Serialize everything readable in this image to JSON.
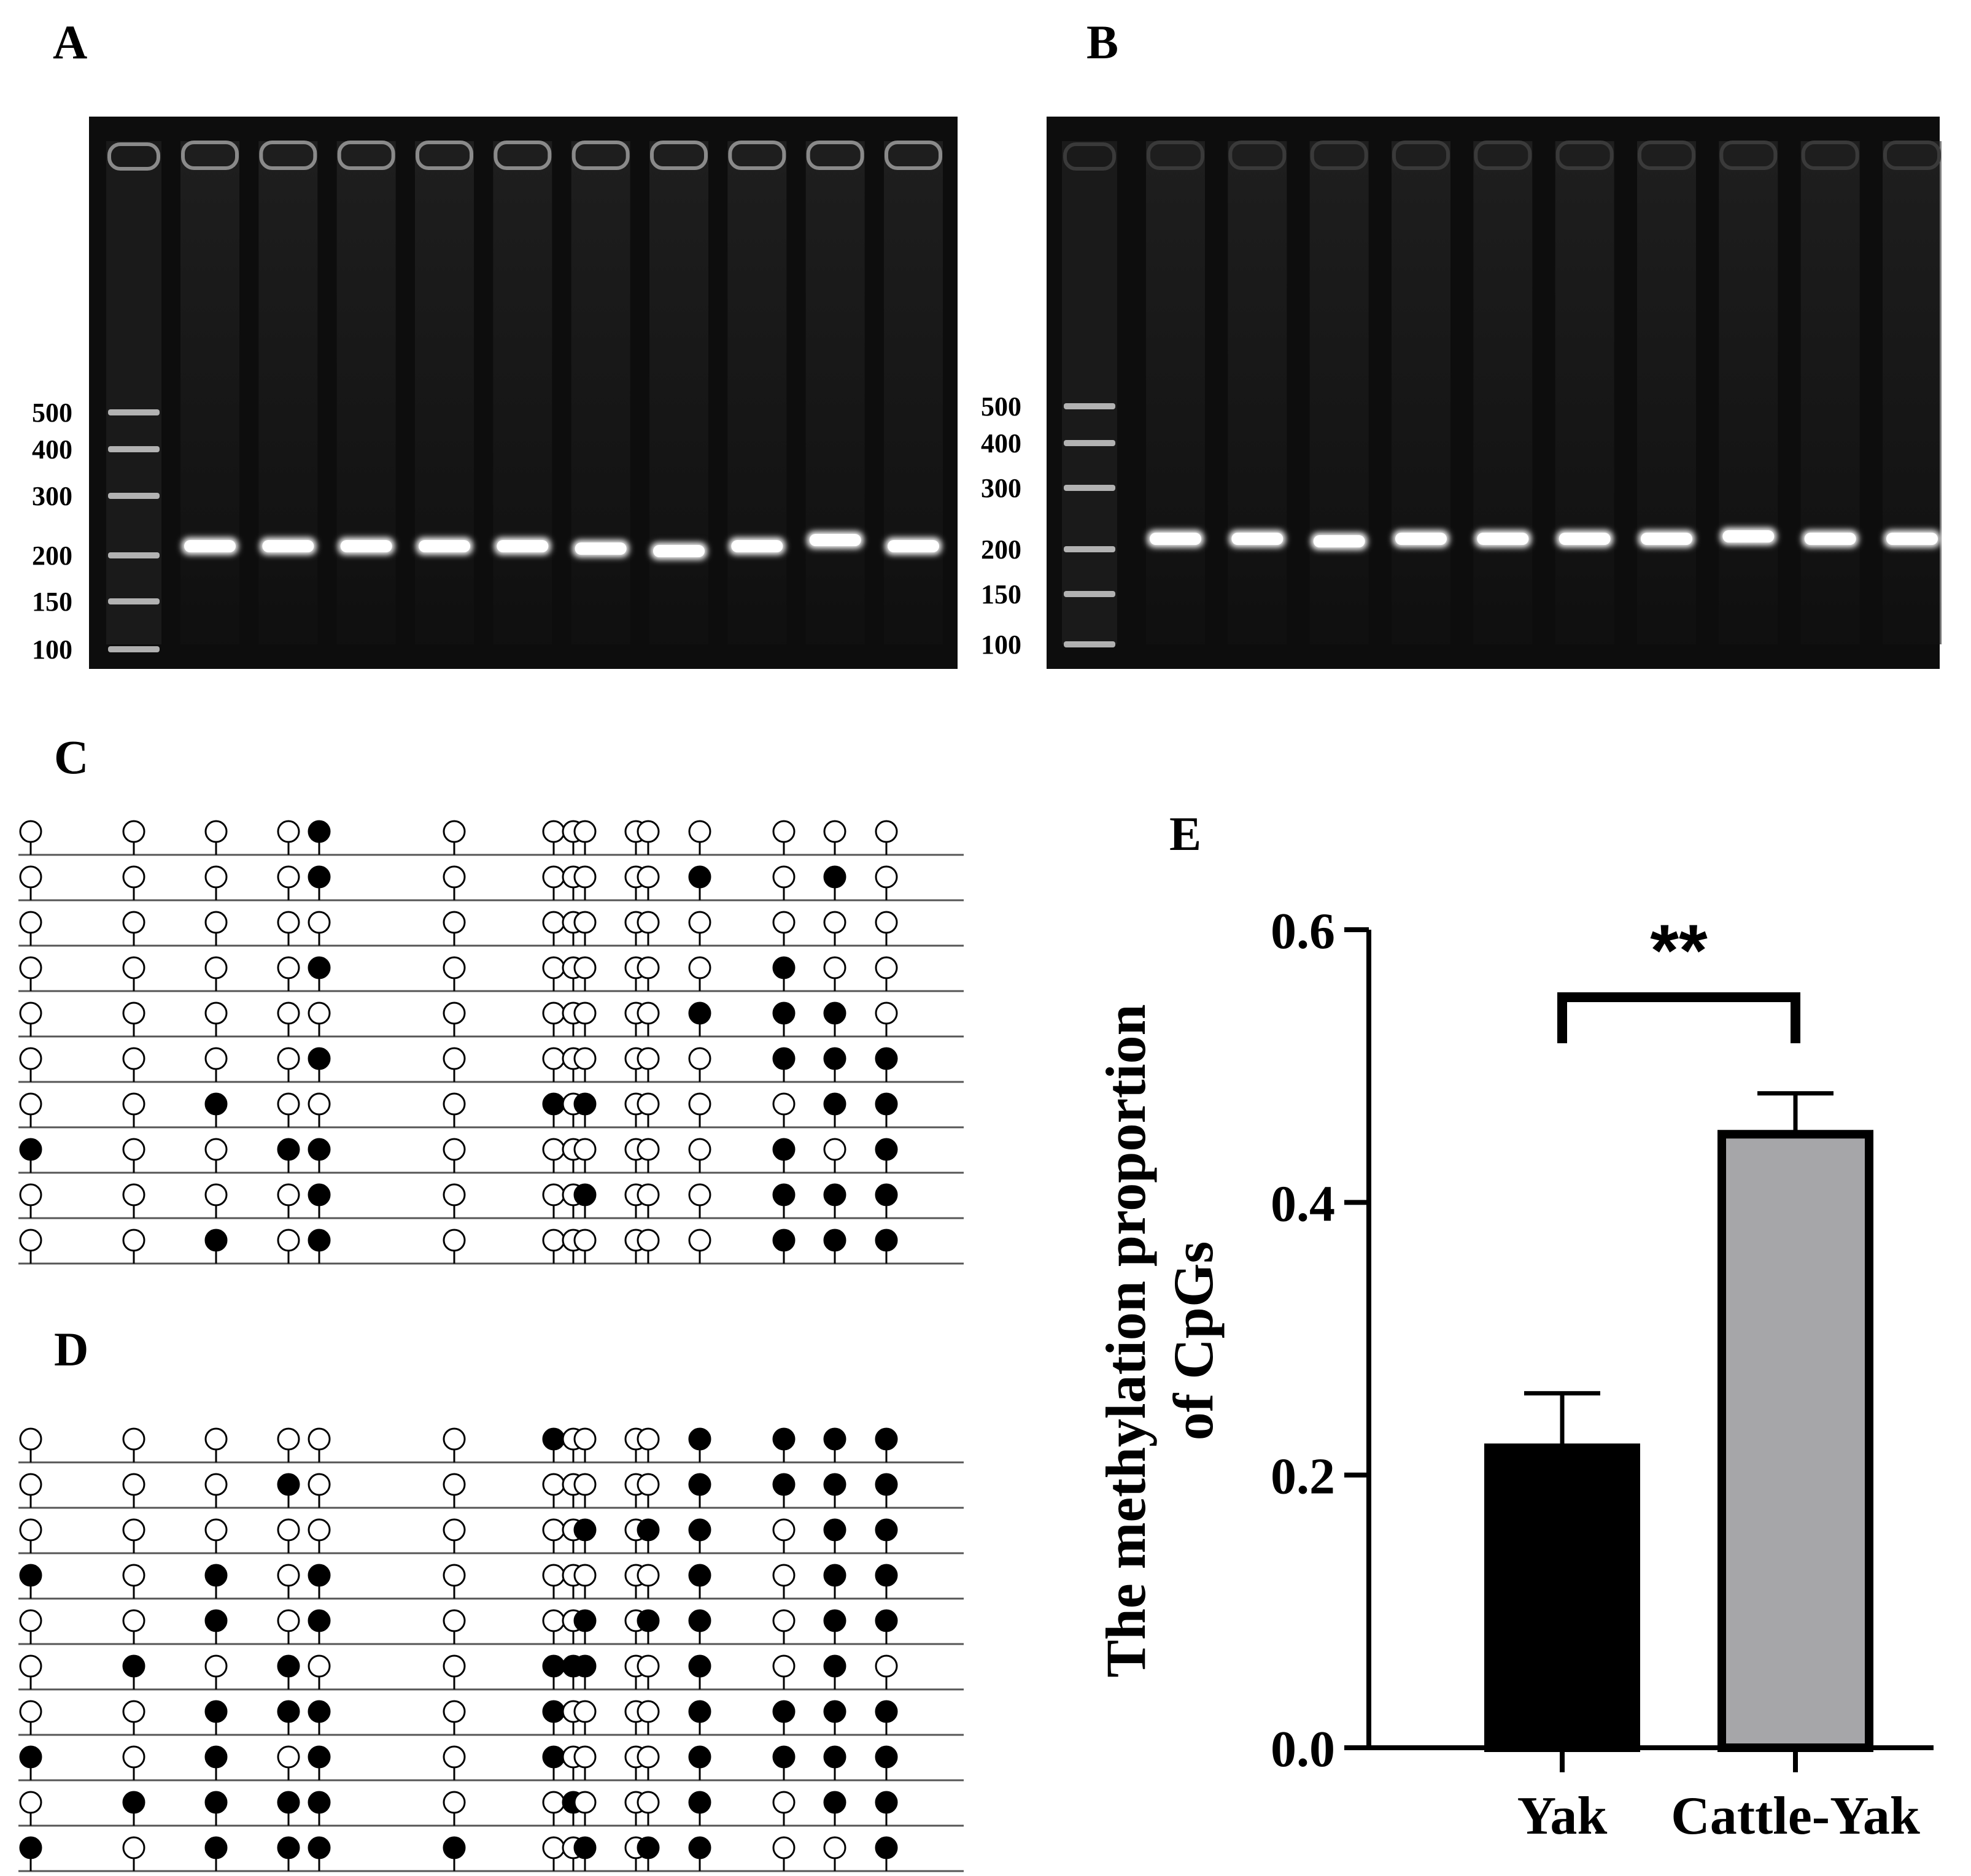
{
  "panels": {
    "a": "A",
    "b": "B",
    "c": "C",
    "d": "D",
    "e": "E"
  },
  "gel_a": {
    "ladder_labels": [
      "500",
      "400",
      "300",
      "200",
      "150",
      "100"
    ],
    "sample_lanes": 10
  },
  "gel_b": {
    "ladder_labels": [
      "500",
      "400",
      "300",
      "200",
      "150",
      "100"
    ],
    "sample_lanes": 10
  },
  "lollipop_c": {
    "rows": [
      [
        0,
        0,
        0,
        0,
        1,
        0,
        0,
        0,
        0,
        0,
        0,
        0,
        0,
        0,
        0
      ],
      [
        0,
        0,
        0,
        0,
        1,
        0,
        0,
        0,
        0,
        0,
        0,
        1,
        0,
        1,
        0
      ],
      [
        0,
        0,
        0,
        0,
        0,
        0,
        0,
        0,
        0,
        0,
        0,
        0,
        0,
        0,
        0
      ],
      [
        0,
        0,
        0,
        0,
        1,
        0,
        0,
        0,
        0,
        0,
        0,
        0,
        1,
        0,
        0
      ],
      [
        0,
        0,
        0,
        0,
        0,
        0,
        0,
        0,
        0,
        0,
        0,
        1,
        1,
        1,
        0
      ],
      [
        0,
        0,
        0,
        0,
        1,
        0,
        0,
        0,
        0,
        0,
        0,
        0,
        1,
        1,
        1
      ],
      [
        0,
        0,
        1,
        0,
        0,
        0,
        1,
        0,
        1,
        0,
        0,
        0,
        0,
        1,
        1
      ],
      [
        1,
        0,
        0,
        1,
        1,
        0,
        0,
        0,
        0,
        0,
        0,
        0,
        1,
        0,
        1
      ],
      [
        0,
        0,
        0,
        0,
        1,
        0,
        0,
        0,
        1,
        0,
        0,
        0,
        1,
        1,
        1
      ],
      [
        0,
        0,
        1,
        0,
        1,
        0,
        0,
        0,
        0,
        0,
        0,
        0,
        1,
        1,
        1
      ]
    ]
  },
  "lollipop_d": {
    "rows": [
      [
        0,
        0,
        0,
        0,
        0,
        0,
        1,
        0,
        0,
        0,
        0,
        1,
        1,
        1,
        1
      ],
      [
        0,
        0,
        0,
        1,
        0,
        0,
        0,
        0,
        0,
        0,
        0,
        1,
        1,
        1,
        1
      ],
      [
        0,
        0,
        0,
        0,
        0,
        0,
        0,
        0,
        1,
        0,
        1,
        1,
        0,
        1,
        1
      ],
      [
        1,
        0,
        1,
        0,
        1,
        0,
        0,
        0,
        0,
        0,
        0,
        1,
        0,
        1,
        1
      ],
      [
        0,
        0,
        1,
        0,
        1,
        0,
        0,
        0,
        1,
        0,
        1,
        1,
        0,
        1,
        1
      ],
      [
        0,
        1,
        0,
        1,
        0,
        0,
        1,
        1,
        1,
        0,
        0,
        1,
        0,
        1,
        0
      ],
      [
        0,
        0,
        1,
        1,
        1,
        0,
        1,
        0,
        0,
        0,
        0,
        1,
        1,
        1,
        1
      ],
      [
        1,
        0,
        1,
        0,
        1,
        0,
        1,
        0,
        0,
        0,
        0,
        1,
        1,
        1,
        1
      ],
      [
        0,
        1,
        1,
        1,
        1,
        0,
        0,
        1,
        0,
        0,
        0,
        1,
        0,
        1,
        1
      ],
      [
        1,
        0,
        1,
        1,
        1,
        1,
        0,
        0,
        1,
        0,
        1,
        1,
        0,
        0,
        1
      ]
    ]
  },
  "chart_data": {
    "type": "bar",
    "categories": [
      "Yak",
      "Cattle-Yak"
    ],
    "values": [
      0.22,
      0.45
    ],
    "error": [
      0.04,
      0.03
    ],
    "ylabel_line1": "The methylation proportion",
    "ylabel_line2": "of CpGs",
    "ylim": [
      0,
      0.6
    ],
    "yticks": [
      "0.0",
      "0.2",
      "0.4",
      "0.6"
    ],
    "ytick_values": [
      0,
      0.2,
      0.4,
      0.6
    ],
    "significance": "**",
    "colors": [
      "#000000",
      "#a6a6a9"
    ]
  }
}
